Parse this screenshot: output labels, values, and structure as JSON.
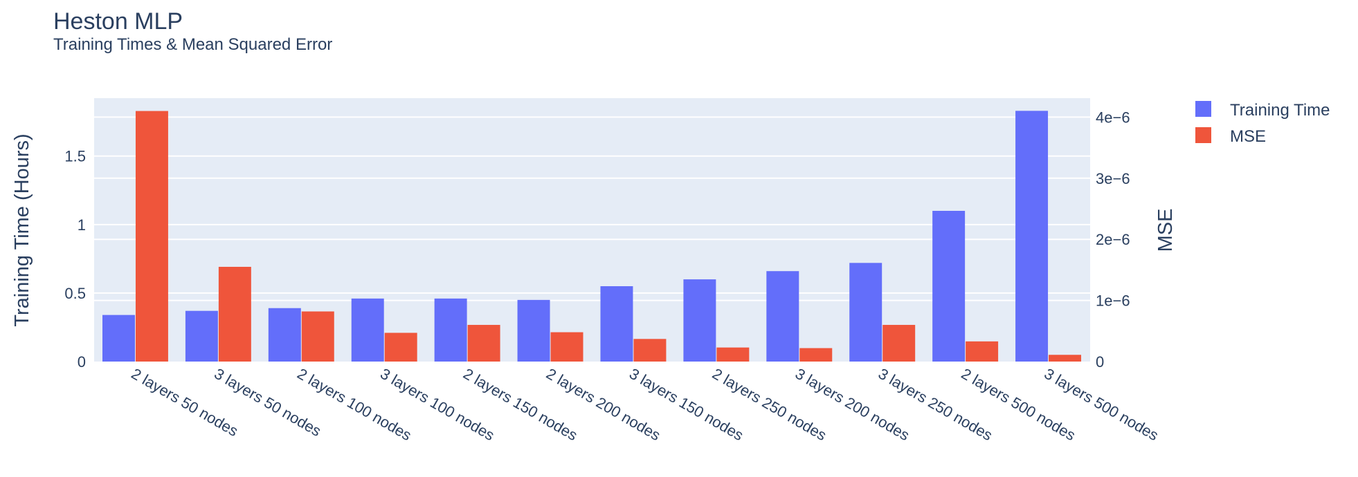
{
  "chart_data": {
    "type": "bar",
    "title": "Heston MLP",
    "subtitle": "Training Times & Mean Squared Error",
    "categories": [
      "2 layers 50 nodes",
      "3 layers 50 nodes",
      "2 layers 100 nodes",
      "3 layers 100 nodes",
      "2 layers 150 nodes",
      "2 layers 200 nodes",
      "3 layers 150 nodes",
      "2 layers 250 nodes",
      "3 layers 200 nodes",
      "3 layers 250 nodes",
      "2 layers 500 nodes",
      "3 layers 500 nodes"
    ],
    "series": [
      {
        "name": "Training Time",
        "axis": "left",
        "color": "#636efa",
        "values": [
          0.34,
          0.37,
          0.39,
          0.46,
          0.46,
          0.45,
          0.55,
          0.6,
          0.66,
          0.72,
          1.1,
          1.83
        ]
      },
      {
        "name": "MSE",
        "axis": "right",
        "color": "#ef553b",
        "values": [
          4.1e-06,
          1.55e-06,
          8.2e-07,
          4.7e-07,
          6e-07,
          4.8e-07,
          3.7e-07,
          2.3e-07,
          2.2e-07,
          6e-07,
          3.3e-07,
          1.1e-07
        ]
      }
    ],
    "ylabel": "Training Time (Hours)",
    "ylabel_right": "MSE",
    "ylim": [
      0,
      1.9225
    ],
    "ylim_right": [
      0,
      4.31e-06
    ],
    "yticks": [
      0,
      0.5,
      1,
      1.5
    ],
    "yticks_right": [
      0,
      1e-06,
      2e-06,
      3e-06,
      4e-06
    ],
    "ytick_labels": [
      "0",
      "0.5",
      "1",
      "1.5"
    ],
    "ytick_labels_right": [
      "0",
      "1e−6",
      "2e−6",
      "3e−6",
      "4e−6"
    ],
    "grid": true,
    "legend_position": "top-right",
    "plot_background": "#e5ecf6"
  }
}
